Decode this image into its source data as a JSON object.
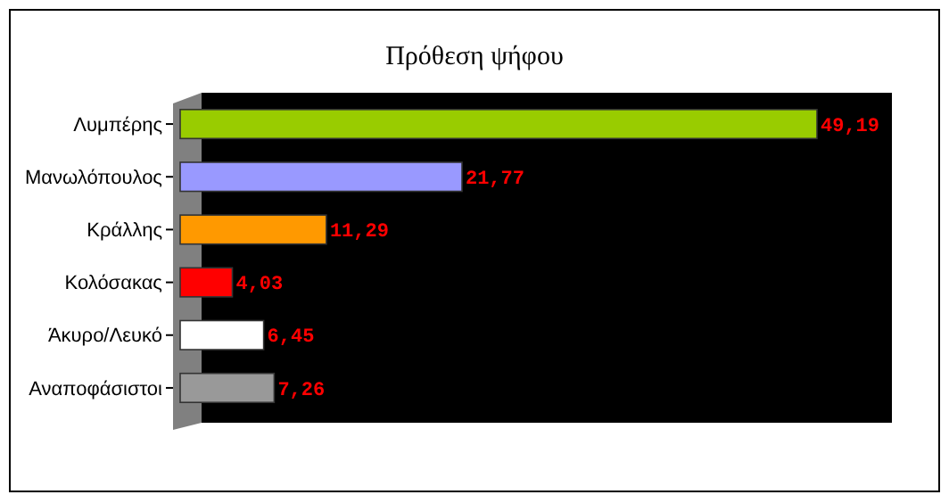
{
  "chart_data": {
    "type": "bar",
    "orientation": "horizontal",
    "title": "Πρόθεση ψήφου",
    "categories": [
      "Λυμπέρης",
      "Μανωλόπουλος",
      "Κράλλης",
      "Κολόσακας",
      "Άκυρο/Λευκό",
      "Αναποφάσιστοι"
    ],
    "values": [
      49.19,
      21.77,
      11.29,
      4.03,
      6.45,
      7.26
    ],
    "colors": [
      "#99cc00",
      "#9999ff",
      "#ff9900",
      "#ff0000",
      "#ffffff",
      "#999999"
    ],
    "value_labels": [
      "49,19",
      "21,77",
      "11,29",
      "4,03",
      "6,45",
      "7,26"
    ],
    "grid": false
  }
}
